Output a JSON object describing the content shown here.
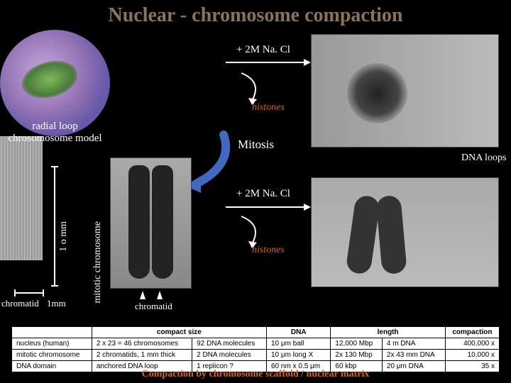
{
  "title": "Nuclear - chromosome compaction",
  "colors": {
    "background": "#000000",
    "title": "#8b7355",
    "text": "#ffffff",
    "accent": "#d2691e"
  },
  "labels": {
    "nacl_upper": "+ 2M Na. Cl",
    "histones_upper": "histones",
    "radial_model_l1": "radial loop",
    "radial_model_l2": "chrosomosome model",
    "mitosis": "Mitosis",
    "nacl_lower": "+ 2M Na. Cl",
    "histones_lower": "histones",
    "dna_loops": "DNA loops",
    "chromatid_left": "chromatid",
    "one_mm": "1mm",
    "ten_mm": "1 o mm",
    "mitotic_chromosome": "mitotic chromosome",
    "chromatid_right": "chromatid"
  },
  "table": {
    "headers": [
      "",
      "compact size",
      "DNA",
      "length",
      "compaction"
    ],
    "rows": [
      [
        "nucleus (human)",
        "2 x 23 = 46 chromosomes",
        "92 DNA molecules",
        "10 μm ball",
        "12,000 Mbp",
        "4 m DNA",
        "400,000 x"
      ],
      [
        "mitotic chromosome",
        "2 chromatids, 1 mm thick",
        "2 DNA molecules",
        "10 μm long X",
        "2x 130 Mbp",
        "2x 43 mm DNA",
        "10,000 x"
      ],
      [
        "DNA domain",
        "anchored DNA loop",
        "1 replicon ?",
        "60 nm x 0.5 μm",
        "60 kbp",
        "20 μm DNA",
        "35 x"
      ]
    ],
    "col_headers_span": {
      "empty_first": true
    }
  },
  "caption": "Compaction by chromosome scaffold / nuclear matrix"
}
